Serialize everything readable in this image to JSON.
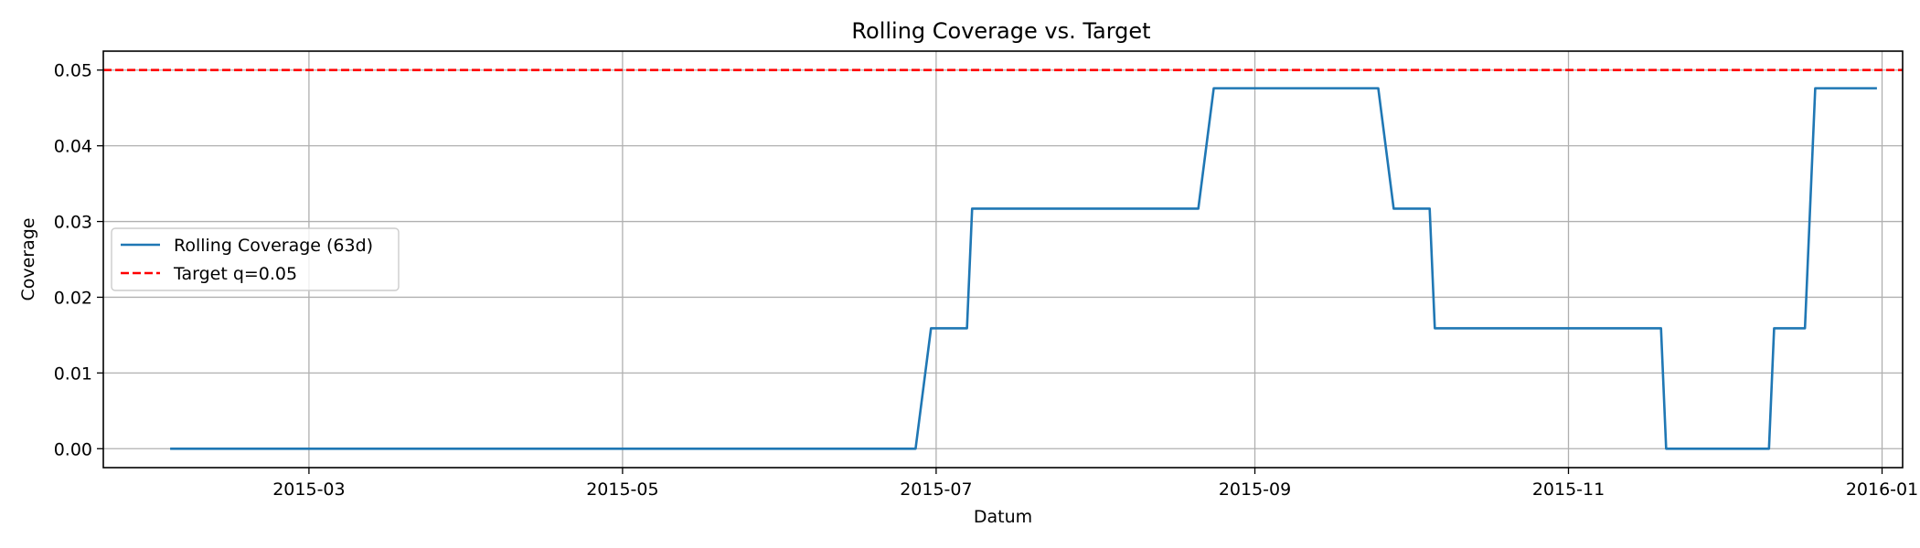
{
  "chart_data": {
    "type": "line",
    "title": "Rolling Coverage vs. Target",
    "xlabel": "Datum",
    "ylabel": "Coverage",
    "xlim": [
      "2015-01-20",
      "2016-01-05"
    ],
    "ylim": [
      -0.0025,
      0.0525
    ],
    "x_ticks": [
      "2015-03-01",
      "2015-05-01",
      "2015-07-01",
      "2015-09-01",
      "2015-11-01",
      "2016-01-01"
    ],
    "x_tick_labels": [
      "2015-03",
      "2015-05",
      "2015-07",
      "2015-09",
      "2015-11",
      "2016-01"
    ],
    "y_ticks": [
      0.0,
      0.01,
      0.02,
      0.03,
      0.04,
      0.05
    ],
    "y_tick_labels": [
      "0.00",
      "0.01",
      "0.02",
      "0.03",
      "0.04",
      "0.05"
    ],
    "grid": true,
    "legend_position": "center-left",
    "series": [
      {
        "name": "Rolling Coverage (63d)",
        "color": "#1f77b4",
        "style": "solid",
        "points": [
          [
            "2015-02-02",
            0.0
          ],
          [
            "2015-06-27",
            0.0
          ],
          [
            "2015-06-30",
            0.0159
          ],
          [
            "2015-07-07",
            0.0159
          ],
          [
            "2015-07-08",
            0.0317
          ],
          [
            "2015-08-21",
            0.0317
          ],
          [
            "2015-08-24",
            0.0476
          ],
          [
            "2015-09-25",
            0.0476
          ],
          [
            "2015-09-28",
            0.0317
          ],
          [
            "2015-10-05",
            0.0317
          ],
          [
            "2015-10-06",
            0.0159
          ],
          [
            "2015-11-19",
            0.0159
          ],
          [
            "2015-11-20",
            0.0
          ],
          [
            "2015-12-10",
            0.0
          ],
          [
            "2015-12-11",
            0.0159
          ],
          [
            "2015-12-17",
            0.0159
          ],
          [
            "2015-12-19",
            0.0476
          ],
          [
            "2015-12-31",
            0.0476
          ]
        ]
      },
      {
        "name": "Target q=0.05",
        "color": "#ff0000",
        "style": "dashed",
        "hline": 0.05
      }
    ]
  }
}
